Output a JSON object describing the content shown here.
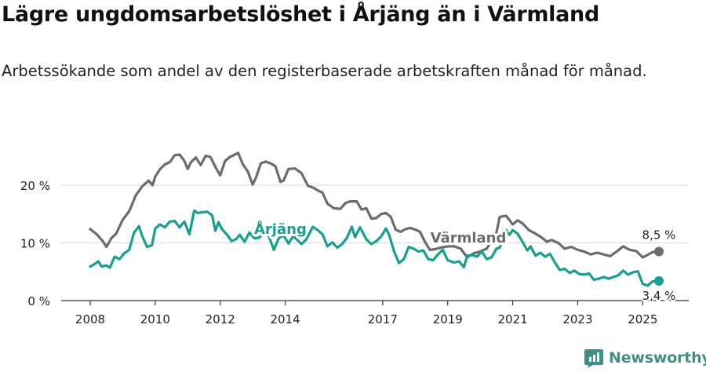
{
  "title": "Lägre ungdomsarbetslöshet i Årjäng än i Värmland",
  "subtitle": "Arbetssökande som andel av den registerbaserade arbetskraften månad för månad.",
  "brand": "Newsworthy",
  "colors": {
    "arjang": "#15a08f",
    "varmland": "#6d6b70",
    "brand": "#3f8f86"
  },
  "chart_data": {
    "type": "line",
    "x_unit": "year",
    "xlim": [
      2008,
      2025.9
    ],
    "ylim": [
      0,
      28
    ],
    "y_ticks": [
      0,
      10,
      20
    ],
    "y_tick_labels": [
      "0 %",
      "10 %",
      "20 %"
    ],
    "x_ticks": [
      2008,
      2010,
      2012,
      2014,
      2017,
      2019,
      2021,
      2023,
      2025
    ],
    "x_tick_labels": [
      "2008",
      "2010",
      "2012",
      "2014",
      "2017",
      "2019",
      "2021",
      "2023",
      "2025"
    ],
    "series": [
      {
        "name": "Värmland",
        "label": "Värmland",
        "end_label": "8,5 %",
        "points": [
          [
            2008.0,
            12.4
          ],
          [
            2008.2,
            11.5
          ],
          [
            2008.4,
            10.2
          ],
          [
            2008.5,
            9.3
          ],
          [
            2008.65,
            10.8
          ],
          [
            2008.8,
            11.6
          ],
          [
            2009.0,
            14.0
          ],
          [
            2009.2,
            15.5
          ],
          [
            2009.4,
            18.2
          ],
          [
            2009.6,
            19.8
          ],
          [
            2009.8,
            20.8
          ],
          [
            2009.92,
            20.0
          ],
          [
            2010.0,
            21.5
          ],
          [
            2010.15,
            22.8
          ],
          [
            2010.3,
            23.6
          ],
          [
            2010.45,
            24.0
          ],
          [
            2010.6,
            25.2
          ],
          [
            2010.75,
            25.3
          ],
          [
            2010.9,
            24.2
          ],
          [
            2011.0,
            22.8
          ],
          [
            2011.1,
            24.0
          ],
          [
            2011.25,
            24.8
          ],
          [
            2011.4,
            23.5
          ],
          [
            2011.55,
            25.1
          ],
          [
            2011.7,
            24.9
          ],
          [
            2011.85,
            23.2
          ],
          [
            2012.0,
            21.7
          ],
          [
            2012.15,
            24.2
          ],
          [
            2012.3,
            24.9
          ],
          [
            2012.45,
            25.3
          ],
          [
            2012.55,
            25.6
          ],
          [
            2012.7,
            23.6
          ],
          [
            2012.85,
            22.4
          ],
          [
            2013.0,
            20.1
          ],
          [
            2013.1,
            21.3
          ],
          [
            2013.25,
            23.8
          ],
          [
            2013.4,
            24.1
          ],
          [
            2013.55,
            23.8
          ],
          [
            2013.7,
            23.3
          ],
          [
            2013.85,
            20.6
          ],
          [
            2013.95,
            20.8
          ],
          [
            2014.1,
            22.8
          ],
          [
            2014.3,
            22.9
          ],
          [
            2014.5,
            22.1
          ],
          [
            2014.7,
            19.9
          ],
          [
            2014.85,
            19.6
          ],
          [
            2015.0,
            19.1
          ],
          [
            2015.15,
            18.7
          ],
          [
            2015.3,
            16.8
          ],
          [
            2015.5,
            16.0
          ],
          [
            2015.7,
            15.9
          ],
          [
            2015.85,
            16.9
          ],
          [
            2016.0,
            17.2
          ],
          [
            2016.2,
            17.2
          ],
          [
            2016.35,
            15.8
          ],
          [
            2016.5,
            16.0
          ],
          [
            2016.65,
            14.2
          ],
          [
            2016.8,
            14.3
          ],
          [
            2016.95,
            15.0
          ],
          [
            2017.1,
            15.2
          ],
          [
            2017.25,
            14.5
          ],
          [
            2017.4,
            12.3
          ],
          [
            2017.55,
            11.9
          ],
          [
            2017.7,
            12.4
          ],
          [
            2017.85,
            12.6
          ],
          [
            2018.0,
            12.3
          ],
          [
            2018.15,
            11.9
          ],
          [
            2018.3,
            10.2
          ],
          [
            2018.45,
            8.8
          ],
          [
            2018.6,
            8.9
          ],
          [
            2018.8,
            9.2
          ],
          [
            2019.0,
            9.4
          ],
          [
            2019.2,
            9.4
          ],
          [
            2019.4,
            9.0
          ],
          [
            2019.6,
            7.5
          ],
          [
            2019.8,
            8.2
          ],
          [
            2020.0,
            8.5
          ],
          [
            2020.2,
            9.0
          ],
          [
            2020.4,
            10.8
          ],
          [
            2020.5,
            11.8
          ],
          [
            2020.6,
            14.5
          ],
          [
            2020.8,
            14.7
          ],
          [
            2021.0,
            13.2
          ],
          [
            2021.15,
            13.9
          ],
          [
            2021.3,
            13.4
          ],
          [
            2021.5,
            12.2
          ],
          [
            2021.7,
            11.6
          ],
          [
            2021.9,
            10.9
          ],
          [
            2022.05,
            10.2
          ],
          [
            2022.2,
            10.5
          ],
          [
            2022.4,
            10.0
          ],
          [
            2022.6,
            9.0
          ],
          [
            2022.8,
            9.3
          ],
          [
            2023.0,
            8.8
          ],
          [
            2023.2,
            8.5
          ],
          [
            2023.4,
            8.0
          ],
          [
            2023.6,
            8.3
          ],
          [
            2023.8,
            8.0
          ],
          [
            2024.0,
            7.7
          ],
          [
            2024.2,
            8.5
          ],
          [
            2024.4,
            9.4
          ],
          [
            2024.6,
            8.8
          ],
          [
            2024.8,
            8.6
          ],
          [
            2025.0,
            7.5
          ],
          [
            2025.15,
            7.9
          ],
          [
            2025.3,
            8.4
          ],
          [
            2025.5,
            8.5
          ]
        ]
      },
      {
        "name": "Årjäng",
        "label": "Årjäng",
        "end_label": "3,4 %",
        "points": [
          [
            2008.0,
            5.9
          ],
          [
            2008.15,
            6.4
          ],
          [
            2008.25,
            6.8
          ],
          [
            2008.35,
            5.9
          ],
          [
            2008.5,
            6.1
          ],
          [
            2008.6,
            5.7
          ],
          [
            2008.75,
            7.6
          ],
          [
            2008.9,
            7.2
          ],
          [
            2009.05,
            8.2
          ],
          [
            2009.2,
            8.8
          ],
          [
            2009.35,
            11.8
          ],
          [
            2009.5,
            12.9
          ],
          [
            2009.6,
            11.2
          ],
          [
            2009.75,
            9.3
          ],
          [
            2009.9,
            9.6
          ],
          [
            2010.0,
            12.5
          ],
          [
            2010.15,
            13.2
          ],
          [
            2010.3,
            12.7
          ],
          [
            2010.45,
            13.7
          ],
          [
            2010.6,
            13.8
          ],
          [
            2010.75,
            12.7
          ],
          [
            2010.9,
            13.7
          ],
          [
            2011.05,
            11.5
          ],
          [
            2011.2,
            15.6
          ],
          [
            2011.3,
            15.2
          ],
          [
            2011.45,
            15.3
          ],
          [
            2011.6,
            15.4
          ],
          [
            2011.75,
            14.8
          ],
          [
            2011.85,
            12.1
          ],
          [
            2011.95,
            13.6
          ],
          [
            2012.05,
            12.4
          ],
          [
            2012.2,
            11.5
          ],
          [
            2012.35,
            10.3
          ],
          [
            2012.5,
            10.7
          ],
          [
            2012.6,
            11.4
          ],
          [
            2012.75,
            10.2
          ],
          [
            2012.9,
            11.8
          ],
          [
            2013.05,
            10.8
          ],
          [
            2013.2,
            10.9
          ],
          [
            2013.35,
            11.8
          ],
          [
            2013.5,
            11.1
          ],
          [
            2013.65,
            8.8
          ],
          [
            2013.8,
            10.8
          ],
          [
            2013.95,
            11.3
          ],
          [
            2014.1,
            9.9
          ],
          [
            2014.25,
            11.2
          ],
          [
            2014.5,
            9.8
          ],
          [
            2014.65,
            10.6
          ],
          [
            2014.85,
            12.8
          ],
          [
            2015.0,
            12.2
          ],
          [
            2015.15,
            11.5
          ],
          [
            2015.3,
            9.4
          ],
          [
            2015.45,
            10.1
          ],
          [
            2015.6,
            9.2
          ],
          [
            2015.75,
            9.8
          ],
          [
            2015.9,
            10.9
          ],
          [
            2016.05,
            12.8
          ],
          [
            2016.15,
            11.0
          ],
          [
            2016.3,
            12.7
          ],
          [
            2016.5,
            10.6
          ],
          [
            2016.65,
            9.8
          ],
          [
            2016.8,
            10.3
          ],
          [
            2016.95,
            11.1
          ],
          [
            2017.1,
            12.5
          ],
          [
            2017.2,
            11.4
          ],
          [
            2017.35,
            8.5
          ],
          [
            2017.5,
            6.5
          ],
          [
            2017.65,
            7.2
          ],
          [
            2017.8,
            9.3
          ],
          [
            2017.95,
            9.0
          ],
          [
            2018.1,
            8.5
          ],
          [
            2018.25,
            8.7
          ],
          [
            2018.4,
            7.2
          ],
          [
            2018.55,
            7.0
          ],
          [
            2018.7,
            8.0
          ],
          [
            2018.85,
            8.8
          ],
          [
            2019.0,
            7.0
          ],
          [
            2019.2,
            6.6
          ],
          [
            2019.35,
            6.8
          ],
          [
            2019.5,
            5.8
          ],
          [
            2019.6,
            7.8
          ],
          [
            2019.75,
            7.9
          ],
          [
            2019.9,
            7.6
          ],
          [
            2020.05,
            8.5
          ],
          [
            2020.2,
            7.2
          ],
          [
            2020.35,
            7.5
          ],
          [
            2020.5,
            9.0
          ],
          [
            2020.6,
            9.2
          ],
          [
            2020.8,
            12.2
          ],
          [
            2020.9,
            11.4
          ],
          [
            2021.0,
            12.2
          ],
          [
            2021.15,
            11.6
          ],
          [
            2021.3,
            10.2
          ],
          [
            2021.45,
            8.7
          ],
          [
            2021.55,
            9.4
          ],
          [
            2021.7,
            7.8
          ],
          [
            2021.85,
            8.3
          ],
          [
            2022.0,
            7.6
          ],
          [
            2022.15,
            8.1
          ],
          [
            2022.3,
            6.6
          ],
          [
            2022.45,
            5.3
          ],
          [
            2022.6,
            5.5
          ],
          [
            2022.75,
            4.8
          ],
          [
            2022.9,
            5.2
          ],
          [
            2023.05,
            4.6
          ],
          [
            2023.2,
            4.5
          ],
          [
            2023.35,
            4.7
          ],
          [
            2023.5,
            3.6
          ],
          [
            2023.65,
            3.8
          ],
          [
            2023.8,
            4.1
          ],
          [
            2023.95,
            3.8
          ],
          [
            2024.1,
            4.1
          ],
          [
            2024.25,
            4.4
          ],
          [
            2024.4,
            5.2
          ],
          [
            2024.55,
            4.5
          ],
          [
            2024.7,
            4.9
          ],
          [
            2024.85,
            5.1
          ],
          [
            2025.0,
            2.9
          ],
          [
            2025.15,
            2.6
          ],
          [
            2025.3,
            3.3
          ],
          [
            2025.5,
            3.4
          ]
        ]
      }
    ]
  }
}
